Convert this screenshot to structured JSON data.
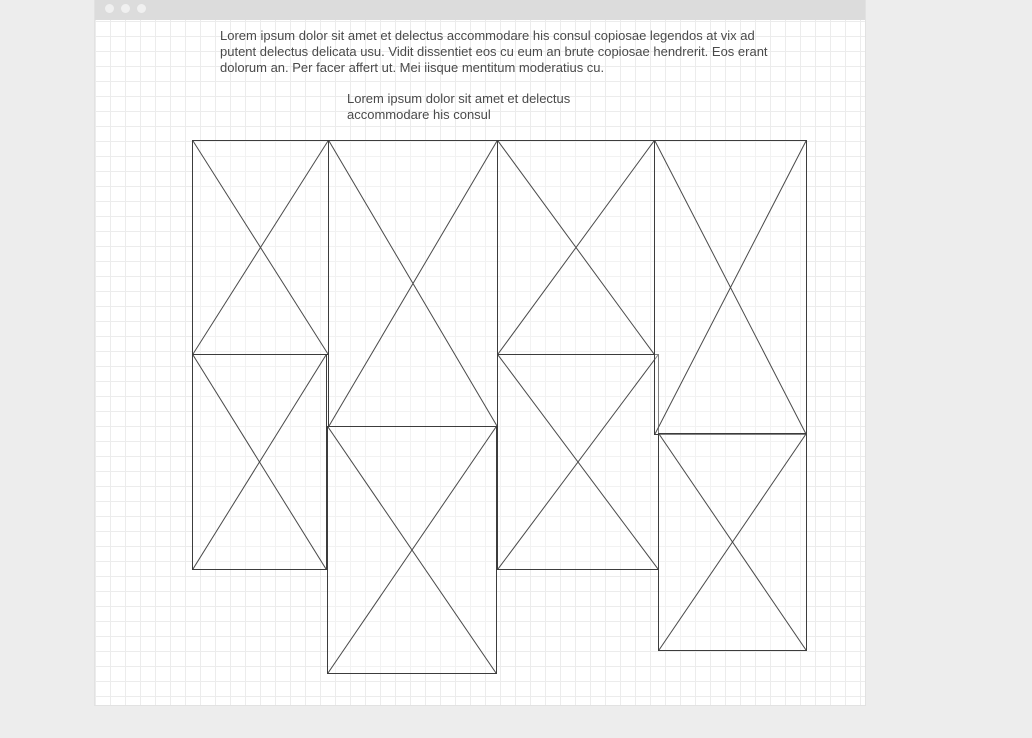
{
  "content": {
    "paragraph_1": "Lorem ipsum dolor sit amet et delectus accommodare his consul copiosae legendos at vix ad putent delectus delicata usu. Vidit dissentiet eos cu eum an brute copiosae hendrerit. Eos erant dolorum an. Per facer affert ut. Mei iisque mentitum moderatius cu.",
    "paragraph_2": "Lorem ipsum dolor sit amet et delectus accommodare his consul"
  },
  "colors": {
    "page_background": "#ededed",
    "canvas": "#ffffff",
    "grid": "#ececec",
    "titlebar": "#dcdcdc",
    "text": "#4a4a4a",
    "placeholder_stroke": "#3c3c3c"
  },
  "gallery": {
    "columns": [
      {
        "images": [
          "image-placeholder",
          "image-placeholder"
        ]
      },
      {
        "images": [
          "image-placeholder",
          "image-placeholder"
        ]
      },
      {
        "images": [
          "image-placeholder",
          "image-placeholder"
        ]
      },
      {
        "images": [
          "image-placeholder",
          "image-placeholder"
        ]
      }
    ]
  }
}
